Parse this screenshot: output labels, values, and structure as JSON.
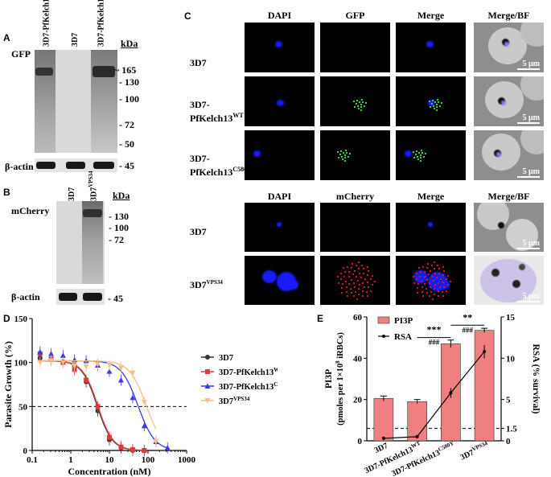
{
  "panelA": {
    "letter": "A",
    "lanes": [
      {
        "main": "3D7-PfKelch13",
        "sup": "WT"
      },
      {
        "main": "3D7",
        "sup": ""
      },
      {
        "main": "3D7-PfKelch13",
        "sup": "C580Y"
      }
    ],
    "kda": "kDa",
    "blot_label": "GFP",
    "markers": [
      "~ 165",
      "130",
      "100",
      "72",
      "50"
    ],
    "actin_label": "β-actin",
    "actin_marker": "45"
  },
  "panelB": {
    "letter": "B",
    "lanes": [
      {
        "main": "3D7",
        "sup": ""
      },
      {
        "main": "3D7",
        "sup": "VPS34"
      }
    ],
    "kda": "kDa",
    "blot_label": "mCherry",
    "markers": [
      "130",
      "100",
      "72"
    ],
    "actin_label": "β-actin",
    "actin_marker": "45"
  },
  "panelC": {
    "letter": "C",
    "top_headers": [
      "DAPI",
      "GFP",
      "Merge",
      "Merge/BF"
    ],
    "top_rows": [
      {
        "main": "3D7",
        "sup": ""
      },
      {
        "main": "3D7-PfKelch13",
        "sup": "WT"
      },
      {
        "main": "3D7-PfKelch13",
        "sup": "C580Y"
      }
    ],
    "bottom_headers": [
      "DAPI",
      "mCherry",
      "Merge",
      "Merge/BF"
    ],
    "bottom_rows": [
      {
        "main": "3D7",
        "sup": ""
      },
      {
        "main": "3D7",
        "sup": "VPS34"
      }
    ],
    "scale_text": "5 μm",
    "colors": {
      "dapi": "#1a1aff",
      "gfp": "#3bd13b",
      "mcherry": "#d11a1a"
    }
  },
  "panelD": {
    "letter": "D",
    "chart_data": {
      "type": "line",
      "xlabel": "Concentration (nM)",
      "ylabel": "Parasite Growth (%)",
      "xscale": "log",
      "xlim": [
        0.1,
        1000
      ],
      "ylim": [
        0,
        150
      ],
      "xticks": [
        "0.1",
        "1",
        "10",
        "100",
        "1000"
      ],
      "yticks": [
        "0",
        "50",
        "100",
        "150"
      ],
      "reference_line": 50,
      "legend_position": "right",
      "series": [
        {
          "name": "3D7",
          "color": "#333333",
          "marker": "circle",
          "x": [
            0.16,
            0.31,
            0.63,
            1.25,
            2.5,
            5,
            10,
            20,
            40,
            80
          ],
          "y": [
            105,
            103,
            101,
            97,
            78,
            45,
            12,
            3,
            0,
            0
          ],
          "ec50": 4.8
        },
        {
          "name": "3D7-PfKelch13",
          "name_sup": "WT",
          "color": "#e03b3b",
          "marker": "square",
          "x": [
            0.16,
            0.31,
            0.63,
            1.25,
            2.5,
            5,
            10,
            20,
            40,
            80
          ],
          "y": [
            110,
            104,
            100,
            92,
            80,
            50,
            15,
            4,
            1,
            0
          ],
          "ec50": 5.0
        },
        {
          "name": "3D7-PfKelch13",
          "name_sup": "C580Y",
          "color": "#3b3be0",
          "marker": "triangle-up",
          "x": [
            0.16,
            0.31,
            0.63,
            1.25,
            2.5,
            5,
            10,
            20,
            40,
            80,
            160,
            320
          ],
          "y": [
            112,
            110,
            108,
            103,
            102,
            97,
            90,
            80,
            60,
            28,
            10,
            3
          ],
          "ec50": 55
        },
        {
          "name": "3D7",
          "name_sup": "VPS34",
          "color": "#f5c08a",
          "marker": "triangle-down",
          "x": [
            0.16,
            0.31,
            0.63,
            1.25,
            2.5,
            5,
            10,
            20,
            40,
            80,
            160
          ],
          "y": [
            100,
            102,
            100,
            96,
            95,
            98,
            97,
            94,
            88,
            55,
            10
          ],
          "ec50": 90
        }
      ]
    }
  },
  "panelE": {
    "letter": "E",
    "chart_data": {
      "type": "bar",
      "categories": [
        {
          "main": "3D7",
          "sup": ""
        },
        {
          "main": "3D7-PfKelch13",
          "sup": "WT"
        },
        {
          "main": "3D7-PfKelch13",
          "sup": "C580Y"
        },
        {
          "main": "3D7",
          "sup": "VPS34"
        }
      ],
      "ylabel_left": "PI3P",
      "ylabel_left_sub": "(pmoles per 1×10",
      "ylabel_left_sup": "8",
      "ylabel_left_end": " iRBCs)",
      "ylabel_right": "RSA (% survival)",
      "ylim_left": [
        0,
        60
      ],
      "ylim_right": [
        0,
        15
      ],
      "yticks_left": [
        "0",
        "20",
        "40",
        "60"
      ],
      "yticks_right": [
        "0",
        "1.5",
        "5",
        "10",
        "15"
      ],
      "series": [
        {
          "name": "PI3P",
          "type": "bar",
          "axis": "left",
          "color": "#f08080",
          "values": [
            20.5,
            19,
            47,
            53.5
          ],
          "errors": [
            1.2,
            1.0,
            1.8,
            1.0
          ]
        },
        {
          "name": "RSA",
          "type": "line",
          "axis": "right",
          "color": "#000000",
          "values": [
            0.3,
            0.5,
            5.8,
            10.8
          ],
          "errors": [
            0.2,
            0.2,
            0.6,
            0.8
          ]
        }
      ],
      "reference_line_right": 1.5,
      "annotations": [
        {
          "text": "***",
          "between": [
            1,
            2
          ]
        },
        {
          "text": "###",
          "between": [
            1,
            2
          ]
        },
        {
          "text": "**",
          "between": [
            2,
            3
          ]
        },
        {
          "text": "###",
          "between": [
            2,
            3
          ]
        }
      ]
    }
  }
}
